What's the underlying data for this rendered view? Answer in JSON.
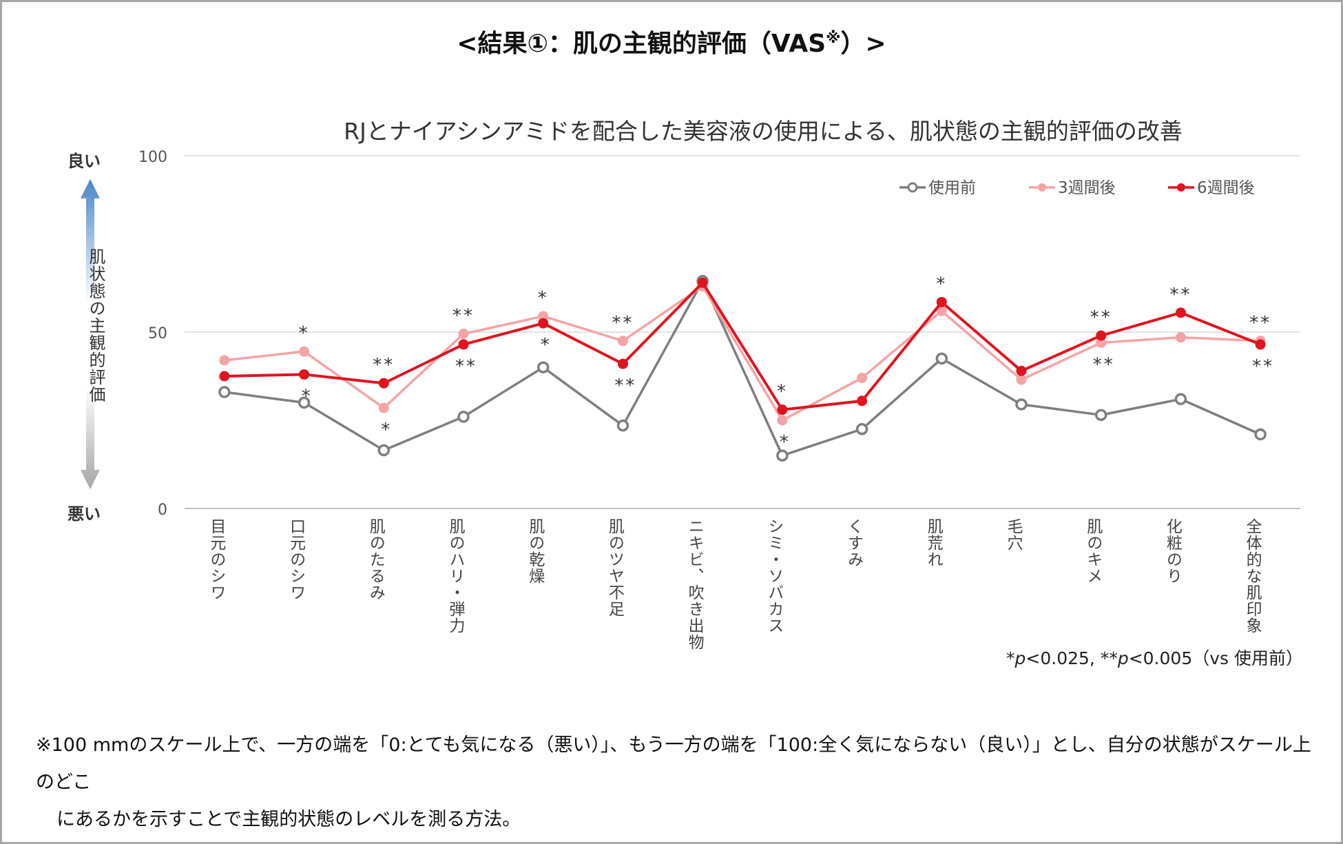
{
  "header": {
    "title": "<結果①：肌の主観的評価（VAS",
    "title_mark": "※",
    "title_end": "）>"
  },
  "y_caption": {
    "good": "良い",
    "bad": "悪い",
    "axis_text": "肌状態の主観的評価"
  },
  "significance_note": {
    "s1": "*",
    "p1": "p",
    "v1": "<0.025, ",
    "s2": "**",
    "p2": "p",
    "v2": "<0.005（vs 使用前）"
  },
  "footnote": {
    "line1": "※100 mmのスケール上で、一方の端を「0:とても気になる（悪い）」、もう一方の端を「100:全く気にならない（良い）」とし、自分の状態がスケール上のどこ",
    "line2": "にあるかを示すことで主観的状態のレベルを測る方法。"
  },
  "colors": {
    "before": "#7f7f7f",
    "week3": "#f4a4a6",
    "week6": "#e0141e",
    "grid": "#d9d9d9",
    "arrow_up": "#4a86c8",
    "arrow_down": "#a6a6a6"
  },
  "chart_data": {
    "type": "line",
    "title": "RJとナイアシンアミドを配合した美容液の使用による、肌状態の主観的評価の改善",
    "ylim": [
      0,
      100
    ],
    "yticks": [
      0,
      50,
      100
    ],
    "legend_position": "top-right",
    "categories": [
      "目元のシワ",
      "口元のシワ",
      "肌のたるみ",
      "肌のハリ・弾力",
      "肌の乾燥",
      "肌のツヤ不足",
      "ニキビ、吹き出物",
      "シミ・ソバカス",
      "くすみ",
      "肌荒れ",
      "毛穴",
      "肌のキメ",
      "化粧のり",
      "全体的な肌印象"
    ],
    "series": [
      {
        "name": "使用前",
        "key": "before",
        "values": [
          33,
          30,
          16.5,
          26,
          40,
          23.5,
          64.5,
          15,
          22.5,
          42.5,
          29.5,
          26.5,
          31,
          21
        ]
      },
      {
        "name": "3週間後",
        "key": "week3",
        "values": [
          42,
          44.5,
          28.5,
          49.5,
          54.5,
          47.5,
          63,
          25,
          37,
          56,
          36.5,
          47,
          48.5,
          47.5
        ]
      },
      {
        "name": "6週間後",
        "key": "week6",
        "values": [
          37.5,
          38,
          35.5,
          46.5,
          52.5,
          41,
          64,
          28,
          30.5,
          58.5,
          39,
          49,
          55.5,
          46.5
        ]
      }
    ],
    "annotations_above": [
      "",
      "*",
      "**",
      "**",
      "*",
      "**",
      "",
      "*",
      "",
      "*",
      "",
      "**",
      "**",
      "**"
    ],
    "annotations_below": [
      "",
      "*",
      "*",
      "**",
      "*",
      "**",
      "",
      "*",
      "",
      "",
      "",
      "**",
      "",
      "**"
    ]
  }
}
